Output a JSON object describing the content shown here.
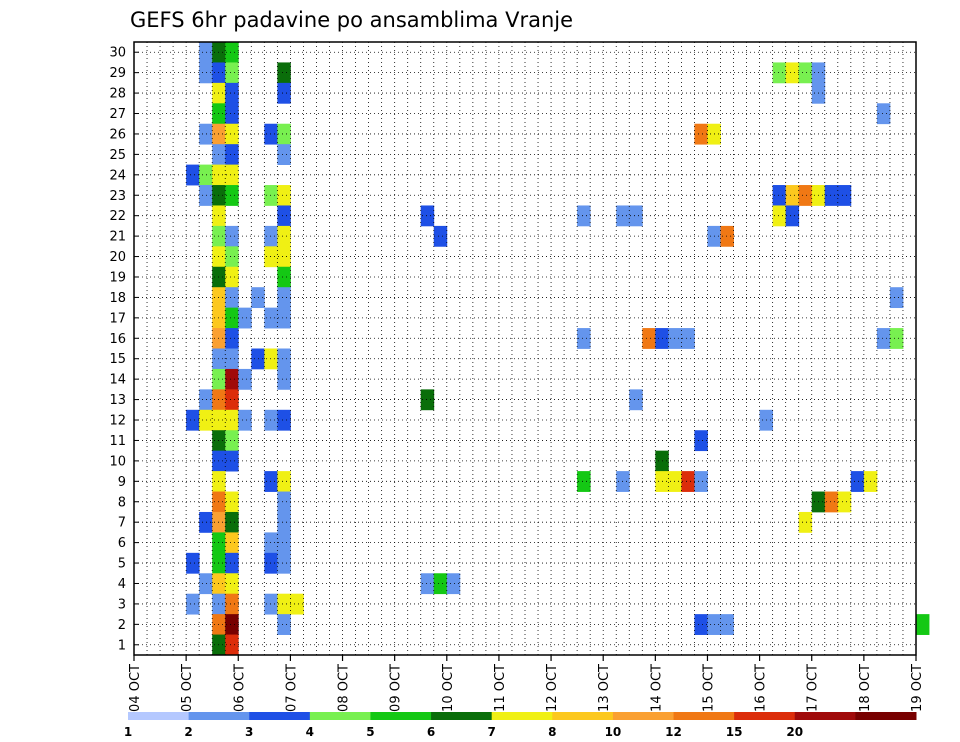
{
  "chart_data": {
    "type": "heatmap",
    "title": "GEFS 6hr padavine po ansamblima Vranje",
    "xlabel": "",
    "ylabel": "",
    "x_ticks": [
      "04 OCT",
      "05 OCT",
      "06 OCT",
      "07 OCT",
      "08 OCT",
      "09 OCT",
      "10 OCT",
      "11 OCT",
      "12 OCT",
      "13 OCT",
      "14 OCT",
      "15 OCT",
      "16 OCT",
      "17 OCT",
      "18 OCT",
      "19 OCT"
    ],
    "y_ticks": [
      "1",
      "2",
      "3",
      "4",
      "5",
      "6",
      "7",
      "8",
      "9",
      "10",
      "11",
      "12",
      "13",
      "14",
      "15",
      "16",
      "17",
      "18",
      "19",
      "20",
      "21",
      "22",
      "23",
      "24",
      "25",
      "26",
      "27",
      "28",
      "29",
      "30"
    ],
    "x_unit": "6-hour step from 04 OCT 00Z",
    "x_range": [
      0,
      60
    ],
    "y_range": [
      1,
      30
    ],
    "grid": true,
    "colorbar": {
      "labels": [
        "1",
        "2",
        "3",
        "4",
        "5",
        "6",
        "7",
        "8",
        "10",
        "12",
        "15",
        "20"
      ],
      "colors": [
        "#b4c8ff",
        "#6495ed",
        "#1e50e6",
        "#78f050",
        "#14c814",
        "#0a6e0a",
        "#f0f014",
        "#fcc81e",
        "#faa032",
        "#f07814",
        "#dc2d0a",
        "#a00a0a",
        "#780000"
      ]
    },
    "cells": [
      [
        5,
        30,
        1
      ],
      [
        6,
        30,
        5
      ],
      [
        7,
        30,
        4
      ],
      [
        5,
        29,
        1
      ],
      [
        6,
        29,
        2
      ],
      [
        7,
        29,
        3
      ],
      [
        11,
        29,
        5
      ],
      [
        49,
        29,
        3
      ],
      [
        50,
        29,
        6
      ],
      [
        51,
        29,
        3
      ],
      [
        52,
        29,
        1
      ],
      [
        6,
        28,
        6
      ],
      [
        7,
        28,
        2
      ],
      [
        11,
        28,
        2
      ],
      [
        52,
        28,
        1
      ],
      [
        6,
        27,
        4
      ],
      [
        7,
        27,
        2
      ],
      [
        57,
        27,
        1
      ],
      [
        5,
        26,
        1
      ],
      [
        6,
        26,
        8
      ],
      [
        7,
        26,
        6
      ],
      [
        10,
        26,
        2
      ],
      [
        11,
        26,
        3
      ],
      [
        43,
        26,
        9
      ],
      [
        44,
        26,
        6
      ],
      [
        6,
        25,
        1
      ],
      [
        7,
        25,
        2
      ],
      [
        11,
        25,
        1
      ],
      [
        4,
        24,
        2
      ],
      [
        5,
        24,
        3
      ],
      [
        6,
        24,
        6
      ],
      [
        7,
        24,
        6
      ],
      [
        5,
        23,
        1
      ],
      [
        6,
        23,
        5
      ],
      [
        7,
        23,
        4
      ],
      [
        10,
        23,
        3
      ],
      [
        11,
        23,
        6
      ],
      [
        49,
        23,
        2
      ],
      [
        50,
        23,
        7
      ],
      [
        51,
        23,
        9
      ],
      [
        52,
        23,
        6
      ],
      [
        53,
        23,
        2
      ],
      [
        54,
        23,
        2
      ],
      [
        6,
        22,
        6
      ],
      [
        11,
        22,
        2
      ],
      [
        22,
        22,
        2
      ],
      [
        34,
        22,
        1
      ],
      [
        37,
        22,
        1
      ],
      [
        38,
        22,
        1
      ],
      [
        49,
        22,
        6
      ],
      [
        50,
        22,
        2
      ],
      [
        6,
        21,
        3
      ],
      [
        7,
        21,
        1
      ],
      [
        10,
        21,
        1
      ],
      [
        11,
        21,
        6
      ],
      [
        23,
        21,
        2
      ],
      [
        44,
        21,
        1
      ],
      [
        45,
        21,
        9
      ],
      [
        6,
        20,
        6
      ],
      [
        7,
        20,
        3
      ],
      [
        10,
        20,
        6
      ],
      [
        11,
        20,
        6
      ],
      [
        6,
        19,
        5
      ],
      [
        7,
        19,
        6
      ],
      [
        11,
        19,
        4
      ],
      [
        6,
        18,
        7
      ],
      [
        7,
        18,
        1
      ],
      [
        9,
        18,
        1
      ],
      [
        11,
        18,
        1
      ],
      [
        58,
        18,
        1
      ],
      [
        6,
        17,
        7
      ],
      [
        7,
        17,
        4
      ],
      [
        8,
        17,
        1
      ],
      [
        10,
        17,
        1
      ],
      [
        11,
        17,
        1
      ],
      [
        6,
        16,
        8
      ],
      [
        7,
        16,
        2
      ],
      [
        34,
        16,
        1
      ],
      [
        39,
        16,
        9
      ],
      [
        40,
        16,
        2
      ],
      [
        41,
        16,
        1
      ],
      [
        42,
        16,
        1
      ],
      [
        57,
        16,
        1
      ],
      [
        58,
        16,
        3
      ],
      [
        6,
        15,
        1
      ],
      [
        7,
        15,
        1
      ],
      [
        9,
        15,
        2
      ],
      [
        10,
        15,
        6
      ],
      [
        11,
        15,
        1
      ],
      [
        6,
        14,
        3
      ],
      [
        7,
        14,
        11
      ],
      [
        8,
        14,
        1
      ],
      [
        11,
        14,
        1
      ],
      [
        5,
        13,
        1
      ],
      [
        6,
        13,
        9
      ],
      [
        7,
        13,
        10
      ],
      [
        22,
        13,
        5
      ],
      [
        38,
        13,
        1
      ],
      [
        4,
        12,
        2
      ],
      [
        5,
        12,
        6
      ],
      [
        6,
        12,
        6
      ],
      [
        7,
        12,
        6
      ],
      [
        8,
        12,
        1
      ],
      [
        10,
        12,
        1
      ],
      [
        11,
        12,
        2
      ],
      [
        48,
        12,
        1
      ],
      [
        6,
        11,
        5
      ],
      [
        7,
        11,
        3
      ],
      [
        43,
        11,
        2
      ],
      [
        6,
        10,
        2
      ],
      [
        7,
        10,
        2
      ],
      [
        40,
        10,
        5
      ],
      [
        6,
        9,
        6
      ],
      [
        10,
        9,
        2
      ],
      [
        11,
        9,
        6
      ],
      [
        34,
        9,
        4
      ],
      [
        37,
        9,
        1
      ],
      [
        40,
        9,
        6
      ],
      [
        41,
        9,
        6
      ],
      [
        42,
        9,
        10
      ],
      [
        43,
        9,
        1
      ],
      [
        55,
        9,
        2
      ],
      [
        56,
        9,
        6
      ],
      [
        6,
        8,
        9
      ],
      [
        7,
        8,
        6
      ],
      [
        11,
        8,
        1
      ],
      [
        52,
        8,
        5
      ],
      [
        53,
        8,
        9
      ],
      [
        54,
        8,
        6
      ],
      [
        5,
        7,
        2
      ],
      [
        6,
        7,
        8
      ],
      [
        7,
        7,
        5
      ],
      [
        11,
        7,
        1
      ],
      [
        51,
        7,
        6
      ],
      [
        6,
        6,
        4
      ],
      [
        7,
        6,
        7
      ],
      [
        10,
        6,
        1
      ],
      [
        11,
        6,
        1
      ],
      [
        4,
        5,
        2
      ],
      [
        6,
        5,
        4
      ],
      [
        7,
        5,
        2
      ],
      [
        10,
        5,
        2
      ],
      [
        11,
        5,
        1
      ],
      [
        5,
        4,
        1
      ],
      [
        6,
        4,
        7
      ],
      [
        7,
        4,
        6
      ],
      [
        22,
        4,
        1
      ],
      [
        23,
        4,
        4
      ],
      [
        24,
        4,
        1
      ],
      [
        4,
        3,
        1
      ],
      [
        6,
        3,
        1
      ],
      [
        7,
        3,
        9
      ],
      [
        10,
        3,
        1
      ],
      [
        11,
        3,
        6
      ],
      [
        12,
        3,
        6
      ],
      [
        6,
        2,
        9
      ],
      [
        7,
        2,
        12
      ],
      [
        11,
        2,
        1
      ],
      [
        43,
        2,
        2
      ],
      [
        44,
        2,
        1
      ],
      [
        45,
        2,
        1
      ],
      [
        60,
        2,
        4
      ],
      [
        6,
        1,
        5
      ],
      [
        7,
        1,
        10
      ]
    ]
  }
}
